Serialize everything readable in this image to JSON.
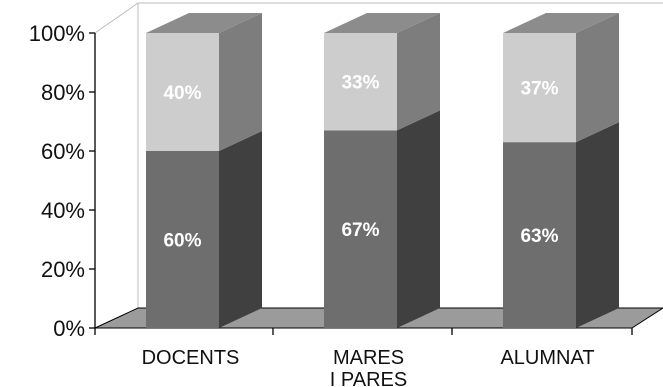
{
  "chart_data": {
    "type": "bar",
    "stacked": true,
    "three_d": true,
    "categories": [
      "DOCENTS",
      "MARES I PARES",
      "ALUMNAT"
    ],
    "category_lines": [
      [
        "DOCENTS"
      ],
      [
        "MARES",
        "I PARES"
      ],
      [
        "ALUMNAT"
      ]
    ],
    "series": [
      {
        "values": [
          60,
          67,
          63
        ],
        "labels": [
          "60%",
          "67%",
          "63%"
        ]
      },
      {
        "values": [
          40,
          33,
          37
        ],
        "labels": [
          "40%",
          "33%",
          "37%"
        ]
      }
    ],
    "y_ticks": [
      0,
      20,
      40,
      60,
      80,
      100
    ],
    "y_tick_labels": [
      "0%",
      "20%",
      "40%",
      "60%",
      "80%",
      "100%"
    ],
    "ylim": [
      0,
      100
    ],
    "grid": false,
    "legend": "none",
    "colors": {
      "lower_front": "#6e6e6e",
      "lower_side": "#404040",
      "upper_front": "#cdcdcd",
      "upper_side": "#7d7d7d",
      "top_face": "#8c8c8c",
      "floor": "#9b9b9b",
      "axis": "#000000",
      "wall_line": "#bdbdbd"
    }
  }
}
